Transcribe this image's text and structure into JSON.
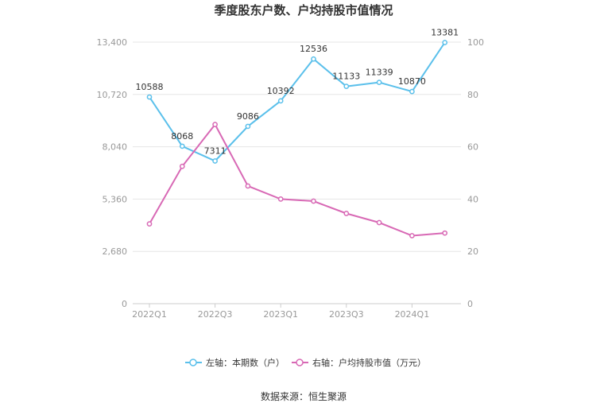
{
  "chart_data": {
    "type": "line",
    "title": "季度股东户数、户均持股市值情况",
    "categories": [
      "2022Q1",
      "2022Q2",
      "2022Q3",
      "2022Q4",
      "2023Q1",
      "2023Q2",
      "2023Q3",
      "2023Q4",
      "2024Q1",
      "2024Q2"
    ],
    "x_tick_labels": [
      "2022Q1",
      "2022Q3",
      "2023Q1",
      "2023Q3",
      "2024Q1"
    ],
    "y_left": {
      "ylim": [
        0,
        13400
      ],
      "ticks": [
        "0",
        "2,680",
        "5,360",
        "8,040",
        "10,720",
        "13,400"
      ]
    },
    "y_right": {
      "ylim": [
        0,
        100
      ],
      "ticks": [
        "0",
        "20",
        "40",
        "60",
        "80",
        "100"
      ]
    },
    "series": [
      {
        "name": "左轴：本期数（户）",
        "axis": "left",
        "color": "#5bc0eb",
        "values": [
          10588,
          8068,
          7311,
          9086,
          10392,
          12536,
          11133,
          11339,
          10870,
          13381
        ],
        "labels": [
          "10588",
          "8068",
          "7311",
          "9086",
          "10392",
          "12536",
          "11133",
          "11339",
          "10870",
          "13381"
        ]
      },
      {
        "name": "右轴：户均持股市值（万元）",
        "axis": "right",
        "color": "#d869b5",
        "values": [
          30.5,
          52.5,
          68.5,
          45.0,
          40.0,
          39.2,
          34.5,
          31.0,
          26.0,
          27.0
        ]
      }
    ],
    "grid": true,
    "legend_position": "bottom"
  },
  "footer": {
    "source": "数据来源：恒生聚源"
  }
}
